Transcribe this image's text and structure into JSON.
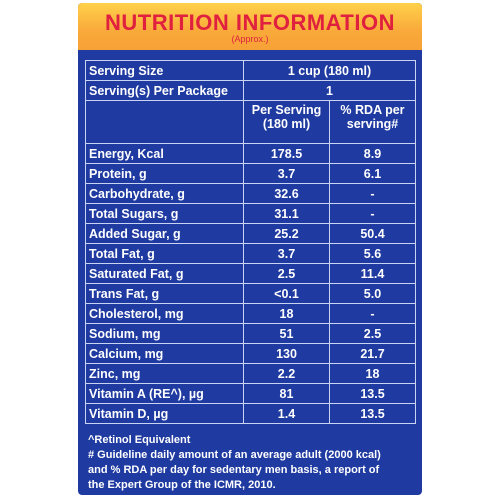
{
  "header": {
    "title": "NUTRITION INFORMATION",
    "subtitle": "(Approx.)"
  },
  "serving": {
    "size_label": "Serving Size",
    "size_value": "1 cup (180 ml)",
    "per_package_label": "Serving(s) Per Package",
    "per_package_value": "1"
  },
  "columns": {
    "per_serving": "Per Serving (180 ml)",
    "rda": "% RDA per serving#"
  },
  "rows": [
    {
      "name": "Energy, Kcal",
      "per_serving": "178.5",
      "rda": "8.9",
      "indent": 0
    },
    {
      "name": "Protein, g",
      "per_serving": "3.7",
      "rda": "6.1",
      "indent": 0
    },
    {
      "name": "Carbohydrate, g",
      "per_serving": "32.6",
      "rda": "-",
      "indent": 0
    },
    {
      "name": "Total Sugars, g",
      "per_serving": "31.1",
      "rda": "-",
      "indent": 1
    },
    {
      "name": "Added Sugar, g",
      "per_serving": "25.2",
      "rda": "50.4",
      "indent": 1
    },
    {
      "name": "Total Fat, g",
      "per_serving": "3.7",
      "rda": "5.6",
      "indent": 0
    },
    {
      "name": "Saturated Fat, g",
      "per_serving": "2.5",
      "rda": "11.4",
      "indent": 2
    },
    {
      "name": "Trans Fat, g",
      "per_serving": "<0.1",
      "rda": "5.0",
      "indent": 1
    },
    {
      "name": "Cholesterol, mg",
      "per_serving": "18",
      "rda": "-",
      "indent": 0
    },
    {
      "name": "Sodium, mg",
      "per_serving": "51",
      "rda": "2.5",
      "indent": 0
    },
    {
      "name": "Calcium, mg",
      "per_serving": "130",
      "rda": "21.7",
      "indent": 0
    },
    {
      "name": "Zinc, mg",
      "per_serving": "2.2",
      "rda": "18",
      "indent": 0
    },
    {
      "name": "Vitamin A (RE^), µg",
      "per_serving": "81",
      "rda": "13.5",
      "indent": 0
    },
    {
      "name": "Vitamin D, µg",
      "per_serving": "1.4",
      "rda": "13.5",
      "indent": 0
    }
  ],
  "footnotes": {
    "line1": "^Retinol Equivalent",
    "line2": "# Guideline daily amount of an average adult (2000 kcal)",
    "line3": "and % RDA per day for sedentary men basis, a report of",
    "line4": "the Expert Group of the ICMR, 2010."
  }
}
